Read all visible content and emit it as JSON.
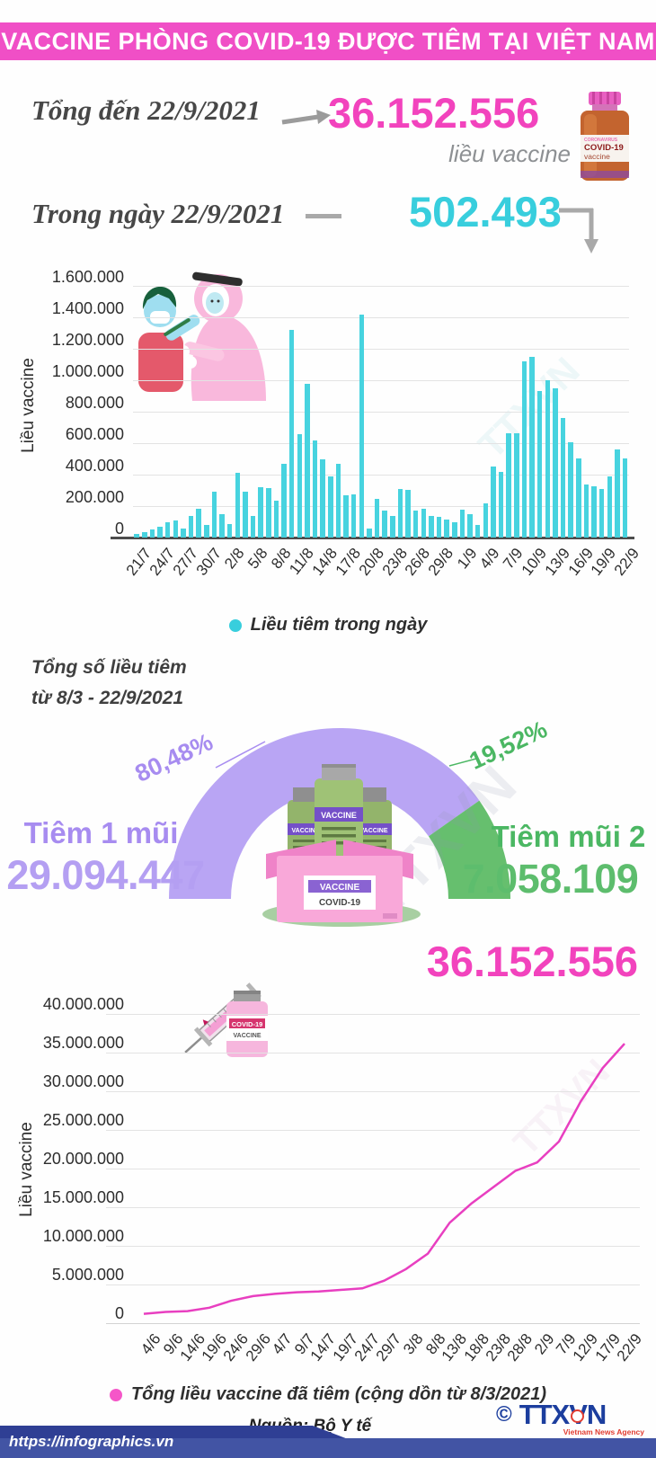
{
  "header": {
    "title": "VACCINE PHÒNG COVID-19 ĐƯỢC TIÊM TẠI VIỆT NAM"
  },
  "stats": {
    "total_label": "Tổng đến 22/9/2021",
    "total_value": "36.152.556",
    "total_unit": "liều vaccine",
    "daily_label": "Trong ngày 22/9/2021",
    "daily_value": "502.493"
  },
  "watermark": "TTXVN",
  "icons": {
    "vial": {
      "tiny": "CORONAVIRUS",
      "line1": "COVID-19",
      "line2": "vaccine"
    },
    "box": {
      "vial_label": "VACCINE",
      "label_top": "VACCINE",
      "label_bottom": "COVID-19"
    },
    "syringe_vial": {
      "line1": "COVID-19",
      "line2": "VACCINE"
    }
  },
  "chart_data": [
    {
      "type": "bar",
      "title": "",
      "ylabel": "Liều vaccine",
      "ylim": [
        0,
        1600000
      ],
      "ytick_labels": [
        "0",
        "200.000",
        "400.000",
        "600.000",
        "800.000",
        "1.000.000",
        "1.200.000",
        "1.400.000",
        "1.600.000"
      ],
      "grid": true,
      "legend": "Liều tiêm trong ngày",
      "legend_position": "bottom",
      "bar_color": "#47d3df",
      "x_label_every": 3,
      "categories": [
        "21/7",
        "22/7",
        "23/7",
        "24/7",
        "25/7",
        "26/7",
        "27/7",
        "28/7",
        "29/7",
        "30/7",
        "31/7",
        "1/8",
        "2/8",
        "3/8",
        "4/8",
        "5/8",
        "6/8",
        "7/8",
        "8/8",
        "9/8",
        "10/8",
        "11/8",
        "12/8",
        "13/8",
        "14/8",
        "15/8",
        "16/8",
        "17/8",
        "18/8",
        "19/8",
        "20/8",
        "21/8",
        "22/8",
        "23/8",
        "24/8",
        "25/8",
        "26/8",
        "27/8",
        "28/8",
        "29/8",
        "30/8",
        "31/8",
        "1/9",
        "2/9",
        "3/9",
        "4/9",
        "5/9",
        "6/9",
        "7/9",
        "8/9",
        "9/9",
        "10/9",
        "11/9",
        "12/9",
        "13/9",
        "14/9",
        "15/9",
        "16/9",
        "17/9",
        "18/9",
        "19/9",
        "20/9",
        "21/9",
        "22/9"
      ],
      "values": [
        25000,
        35000,
        50000,
        70000,
        95000,
        110000,
        60000,
        140000,
        185000,
        80000,
        290000,
        150000,
        85000,
        410000,
        290000,
        140000,
        320000,
        315000,
        235000,
        470000,
        1320000,
        655000,
        980000,
        615000,
        500000,
        390000,
        470000,
        270000,
        275000,
        1415000,
        60000,
        245000,
        170000,
        140000,
        310000,
        305000,
        170000,
        185000,
        135000,
        130000,
        115000,
        100000,
        175000,
        150000,
        80000,
        215000,
        450000,
        415000,
        665000,
        665000,
        1120000,
        1150000,
        930000,
        1000000,
        950000,
        760000,
        605000,
        505000,
        335000,
        325000,
        310000,
        390000,
        560000,
        502493
      ]
    },
    {
      "type": "pie",
      "subtype": "half-donut-gauge",
      "title_lines": [
        "Tổng số liều tiêm",
        "từ 8/3 - 22/9/2021"
      ],
      "slices": [
        {
          "label": "Tiêm 1 mũi",
          "value": 29094447,
          "display": "29.094.447",
          "pct": 80.48,
          "pct_label": "80,48%",
          "color": "#b9a5f4"
        },
        {
          "label": "Tiêm mũi 2",
          "value": 7058109,
          "display": "7.058.109",
          "pct": 19.52,
          "pct_label": "19,52%",
          "color": "#66bf6e"
        }
      ]
    },
    {
      "type": "line",
      "total_label": "36.152.556",
      "ylabel": "Liều vaccine",
      "ylim": [
        0,
        40000000
      ],
      "ytick_labels": [
        "0",
        "5.000.000",
        "10.000.000",
        "15.000.000",
        "20.000.000",
        "25.000.000",
        "30.000.000",
        "35.000.000",
        "40.000.000"
      ],
      "grid": true,
      "legend": "Tổng liều vaccine đã tiêm (cộng dồn từ 8/3/2021)",
      "legend_position": "bottom",
      "line_color": "#e83fc0",
      "categories": [
        "4/6",
        "9/6",
        "14/6",
        "19/6",
        "24/6",
        "29/6",
        "4/7",
        "9/7",
        "14/7",
        "19/7",
        "24/7",
        "29/7",
        "3/8",
        "8/8",
        "13/8",
        "18/8",
        "23/8",
        "28/8",
        "2/9",
        "7/9",
        "12/9",
        "17/9",
        "22/9"
      ],
      "values": [
        1200000,
        1450000,
        1550000,
        2000000,
        2900000,
        3500000,
        3800000,
        4000000,
        4100000,
        4300000,
        4500000,
        5500000,
        7000000,
        9000000,
        13000000,
        15500000,
        17600000,
        19700000,
        20800000,
        23500000,
        28700000,
        33000000,
        36152556
      ]
    }
  ],
  "footer": {
    "source": "Nguồn: Bộ Y tế",
    "url": "https://infographics.vn",
    "copyright": "©",
    "agency": "TTXVN",
    "agency_subtitle": "Vietnam News Agency"
  }
}
